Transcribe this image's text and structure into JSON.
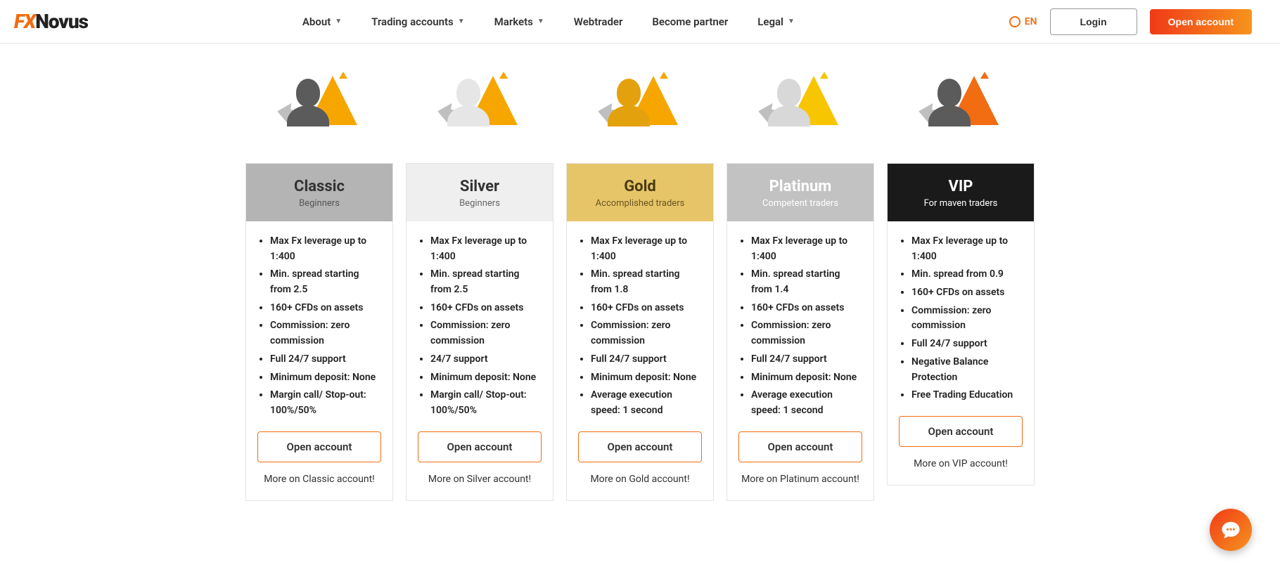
{
  "logo": {
    "fx": "FX",
    "novus": "Novus"
  },
  "nav": {
    "about": "About",
    "trading_accounts": "Trading accounts",
    "markets": "Markets",
    "webtrader": "Webtrader",
    "become_partner": "Become partner",
    "legal": "Legal"
  },
  "lang_label": "EN",
  "login_label": "Login",
  "open_account_label": "Open account",
  "card_open_label": "Open account",
  "colors": {
    "accent": "#f26c12",
    "card_border": "#e4e4e4",
    "text": "#333333"
  },
  "plans": [
    {
      "id": "classic",
      "title": "Classic",
      "subtitle": "Beginners",
      "head_bg": "#b4b4b4",
      "head_title_color": "#333333",
      "head_sub_color": "#555555",
      "bust_color": "#5b5b5b",
      "tri_color": "#f7a600",
      "features": [
        "Max Fx leverage up to 1:400",
        "Min. spread starting from 2.5",
        "160+ CFDs on assets",
        "Commission: zero commission",
        "Full 24/7 support",
        "Minimum deposit: None",
        "Margin call/ Stop-out: 100%/50%"
      ],
      "more": "More on Classic account!"
    },
    {
      "id": "silver",
      "title": "Silver",
      "subtitle": "Beginners",
      "head_bg": "#efefef",
      "head_title_color": "#333333",
      "head_sub_color": "#666666",
      "bust_color": "#e6e6e6",
      "tri_color": "#f7a600",
      "features": [
        "Max Fx leverage up to 1:400",
        "Min. spread starting from 2.5",
        "160+ CFDs on assets",
        "Commission:  zero commission",
        "24/7 support",
        "Minimum deposit: None",
        "Margin call/ Stop-out: 100%/50%"
      ],
      "more": "More on Silver account!"
    },
    {
      "id": "gold",
      "title": "Gold",
      "subtitle": "Accomplished traders",
      "head_bg": "#e6c569",
      "head_title_color": "#4a3a12",
      "head_sub_color": "#6b5420",
      "bust_color": "#e3a20d",
      "tri_color": "#f7a600",
      "features": [
        "Max Fx leverage up to 1:400",
        "Min. spread starting from 1.8",
        "160+ CFDs on assets",
        "Commission:  zero commission",
        "Full 24/7 support",
        "Minimum deposit:  None",
        "Average execution speed:  1 second"
      ],
      "more": "More on Gold account!"
    },
    {
      "id": "platinum",
      "title": "Platinum",
      "subtitle": "Competent traders",
      "head_bg": "#c2c2c2",
      "head_title_color": "#ffffff",
      "head_sub_color": "#ffffff",
      "bust_color": "#d8d8d8",
      "tri_color": "#f7c600",
      "features": [
        "Max Fx leverage up to 1:400",
        "Min. spread starting from 1.4",
        "160+ CFDs on assets",
        "Commission:  zero commission",
        "Full 24/7 support",
        "Minimum deposit:  None",
        "Average execution speed: 1 second"
      ],
      "more": "More on Platinum account!"
    },
    {
      "id": "vip",
      "title": "VIP",
      "subtitle": "For maven traders",
      "head_bg": "#1a1a1a",
      "head_title_color": "#ffffff",
      "head_sub_color": "#ffffff",
      "bust_color": "#5b5b5b",
      "tri_color": "#f26c12",
      "features": [
        "Max Fx leverage up to 1:400",
        "Min. spread from 0.9",
        "160+ CFDs on assets",
        "Commission:  zero commission",
        "Full 24/7 support",
        "Negative Balance Protection",
        "Free Trading Education"
      ],
      "more": "More on VIP account!"
    }
  ]
}
